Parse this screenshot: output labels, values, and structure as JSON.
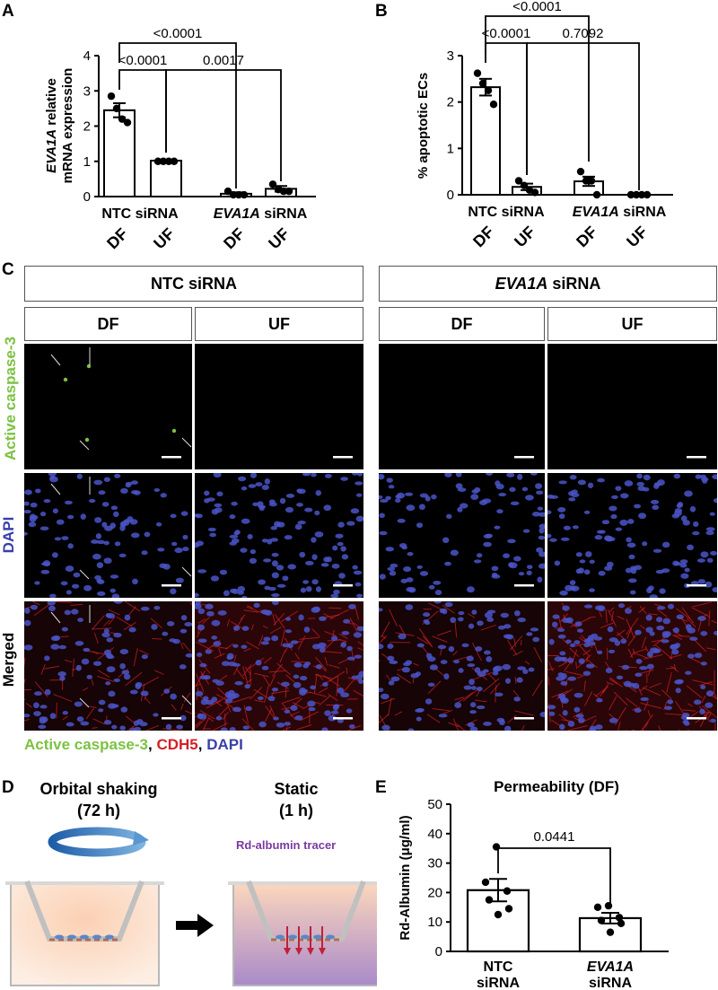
{
  "panels": {
    "a": "A",
    "b": "B",
    "c": "C",
    "d": "D",
    "e": "E"
  },
  "chart_data": [
    {
      "id": "A",
      "type": "bar",
      "ylabel_italic": "EVA1A",
      "ylabel_rest": " relative",
      "ylabel_line2": "mRNA expression",
      "ylim": [
        0,
        4
      ],
      "yticks": [
        "0",
        "1",
        "2",
        "3",
        "4"
      ],
      "groups": [
        {
          "italic": "",
          "label": "NTC siRNA"
        },
        {
          "italic": "EVA1A",
          "label": " siRNA"
        }
      ],
      "categories": [
        "DF",
        "UF",
        "DF",
        "UF"
      ],
      "values": [
        2.45,
        1.02,
        0.08,
        0.22
      ],
      "errors": [
        0.2,
        0.02,
        0.04,
        0.08
      ],
      "points": [
        [
          2.85,
          2.5,
          2.2,
          2.1
        ],
        [
          1.0,
          1.0,
          1.0,
          1.0
        ],
        [
          0.15,
          0.05,
          0.05,
          0.05
        ],
        [
          0.35,
          0.2,
          0.15,
          0.15
        ]
      ],
      "comparisons": [
        {
          "from": 0,
          "to": 1,
          "label": "<0.0001"
        },
        {
          "from": 0,
          "to": 2,
          "label": "<0.0001"
        },
        {
          "from": 1,
          "to": 3,
          "label": "0.0017"
        }
      ]
    },
    {
      "id": "B",
      "type": "bar",
      "ylabel": "% apoptotic ECs",
      "ylim": [
        0,
        3
      ],
      "yticks": [
        "0",
        "1",
        "2",
        "3"
      ],
      "groups": [
        {
          "italic": "",
          "label": "NTC siRNA"
        },
        {
          "italic": "EVA1A",
          "label": " siRNA"
        }
      ],
      "categories": [
        "DF",
        "UF",
        "DF",
        "UF"
      ],
      "values": [
        2.32,
        0.17,
        0.29,
        0.0
      ],
      "errors": [
        0.18,
        0.07,
        0.1,
        0.0
      ],
      "points": [
        [
          2.62,
          2.4,
          2.25,
          1.95
        ],
        [
          0.3,
          0.2,
          0.1,
          0.05
        ],
        [
          0.5,
          0.3,
          0.3,
          0.0
        ],
        [
          0.0,
          0.0,
          0.0,
          0.0
        ]
      ],
      "comparisons": [
        {
          "from": 0,
          "to": 1,
          "label": "<0.0001"
        },
        {
          "from": 0,
          "to": 2,
          "label": "<0.0001"
        },
        {
          "from": 1,
          "to": 3,
          "label": "0.7092"
        }
      ]
    },
    {
      "id": "E",
      "type": "bar",
      "title": "Permeability (DF)",
      "ylabel": "Rd-Albumin (μg/ml)",
      "ylim": [
        0,
        50
      ],
      "yticks": [
        "0",
        "10",
        "20",
        "30",
        "40",
        "50"
      ],
      "categories": [
        {
          "italic": "",
          "line1": "NTC",
          "line2": "siRNA"
        },
        {
          "italic": "EVA1A",
          "line1": "",
          "line2": "siRNA"
        }
      ],
      "values": [
        20.8,
        11.3
      ],
      "errors": [
        3.8,
        1.8
      ],
      "points": [
        [
          35.5,
          23.5,
          20.5,
          17.5,
          14.5,
          12.5
        ],
        [
          15.5,
          15,
          11.5,
          10.5,
          9.5,
          6.5
        ]
      ],
      "comparisons": [
        {
          "from": 0,
          "to": 1,
          "label": "0.0441"
        }
      ]
    }
  ],
  "panel_c": {
    "groups": [
      {
        "italic": "",
        "label": "NTC siRNA"
      },
      {
        "italic": "EVA1A",
        "label": " siRNA"
      }
    ],
    "columns": [
      "DF",
      "UF",
      "DF",
      "UF"
    ],
    "rows": [
      "Active caspase-3",
      "DAPI",
      "Merged"
    ],
    "legend": {
      "caspase": "Active caspase-3",
      "sep1": ", ",
      "cdh5": "CDH5",
      "sep2": ", ",
      "dapi": "DAPI"
    },
    "colors": {
      "caspase": "#7cc242",
      "cdh5": "#d42028",
      "dapi": "#3a3fa8"
    }
  },
  "panel_d": {
    "step1_title": "Orbital shaking",
    "step1_time": "(72 h)",
    "step2_title": "Static",
    "step2_time": "(1 h)",
    "tracer": "Rd-albumin tracer"
  }
}
